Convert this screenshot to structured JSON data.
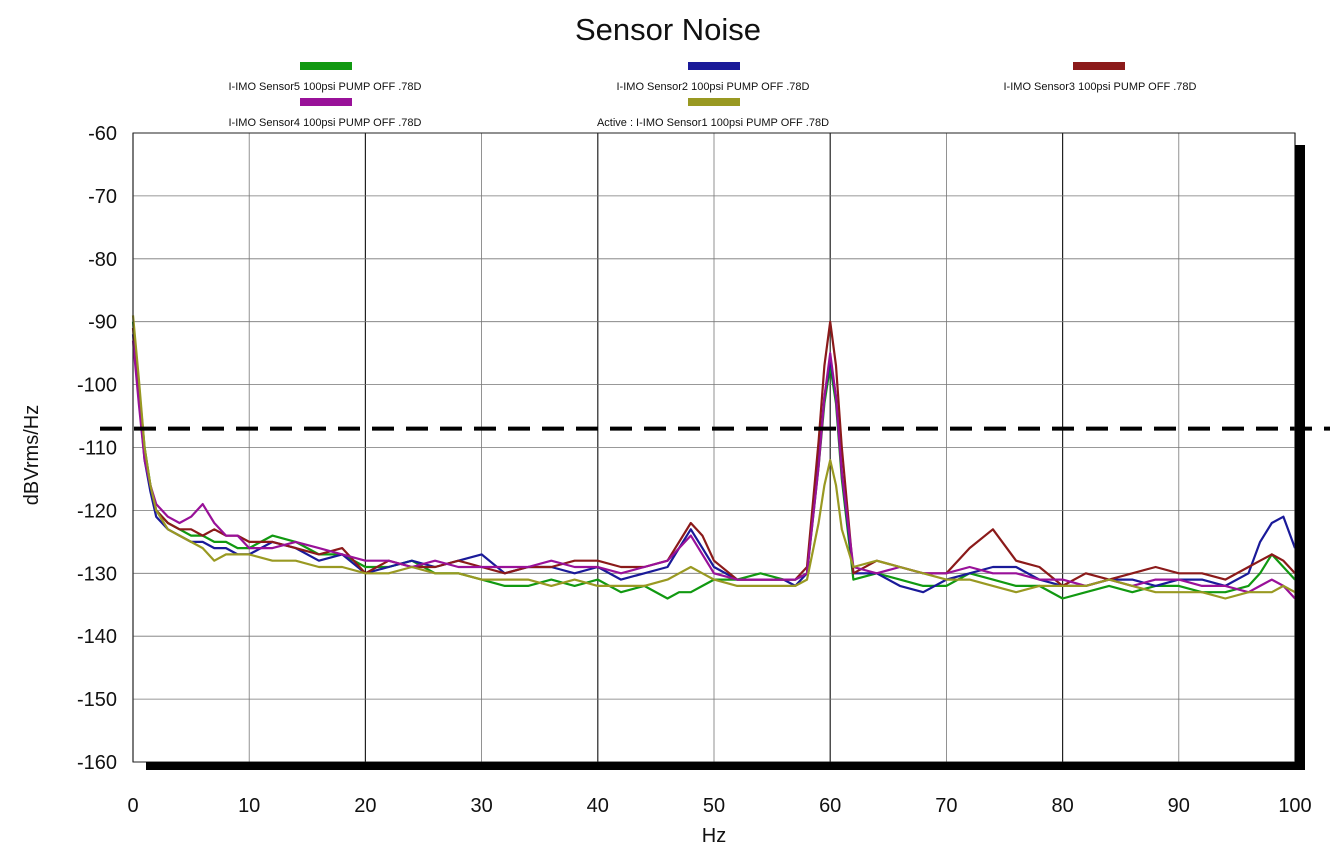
{
  "chart_data": {
    "type": "line",
    "title": "Sensor Noise",
    "xlabel": "Hz",
    "ylabel": "dBVrms/Hz",
    "xlim": [
      0,
      100
    ],
    "ylim": [
      -160,
      -60
    ],
    "x_ticks": [
      0,
      10,
      20,
      30,
      40,
      50,
      60,
      70,
      80,
      90,
      100
    ],
    "y_ticks": [
      -60,
      -70,
      -80,
      -90,
      -100,
      -110,
      -120,
      -130,
      -140,
      -150,
      -160
    ],
    "grid": true,
    "legend_position": "top",
    "threshold_line": {
      "y": -107,
      "style": "dashed",
      "color": "#000000"
    },
    "x": [
      0,
      0.5,
      1,
      1.5,
      2,
      3,
      4,
      5,
      6,
      7,
      8,
      9,
      10,
      12,
      14,
      16,
      18,
      20,
      22,
      24,
      26,
      28,
      30,
      32,
      34,
      36,
      38,
      40,
      42,
      44,
      46,
      47,
      48,
      49,
      50,
      52,
      54,
      56,
      57,
      58,
      59,
      59.5,
      60,
      60.5,
      61,
      62,
      64,
      66,
      68,
      70,
      72,
      74,
      76,
      78,
      80,
      82,
      84,
      86,
      88,
      90,
      92,
      94,
      96,
      97,
      98,
      99,
      100
    ],
    "series": [
      {
        "name": "I-IMO Sensor5  100psi PUMP OFF .78D",
        "color": "#119911",
        "values": [
          -90,
          -100,
          -110,
          -116,
          -120,
          -122,
          -123,
          -124,
          -124,
          -125,
          -125,
          -126,
          -126,
          -124,
          -125,
          -127,
          -127,
          -129,
          -129,
          -128,
          -130,
          -130,
          -131,
          -132,
          -132,
          -131,
          -132,
          -131,
          -133,
          -132,
          -134,
          -133,
          -133,
          -132,
          -131,
          -131,
          -130,
          -131,
          -131,
          -130,
          -113,
          -103,
          -97,
          -103,
          -115,
          -131,
          -130,
          -131,
          -132,
          -132,
          -130,
          -131,
          -132,
          -132,
          -134,
          -133,
          -132,
          -133,
          -132,
          -132,
          -133,
          -133,
          -132,
          -130,
          -127,
          -129,
          -131
        ]
      },
      {
        "name": "I-IMO Sensor2  100psi PUMP OFF .78D",
        "color": "#1a1a99",
        "values": [
          -92,
          -102,
          -112,
          -117,
          -121,
          -123,
          -124,
          -125,
          -125,
          -126,
          -126,
          -127,
          -127,
          -125,
          -126,
          -128,
          -127,
          -130,
          -129,
          -128,
          -129,
          -128,
          -127,
          -130,
          -129,
          -129,
          -130,
          -129,
          -131,
          -130,
          -129,
          -126,
          -123,
          -126,
          -129,
          -131,
          -131,
          -131,
          -132,
          -130,
          -112,
          -102,
          -96,
          -102,
          -114,
          -130,
          -130,
          -132,
          -133,
          -131,
          -130,
          -129,
          -129,
          -131,
          -132,
          -132,
          -131,
          -131,
          -132,
          -131,
          -131,
          -132,
          -130,
          -125,
          -122,
          -121,
          -126
        ]
      },
      {
        "name": "I-IMO Sensor3  100psi PUMP OFF .78D",
        "color": "#8b1a1a",
        "values": [
          -91,
          -101,
          -111,
          -116,
          -120,
          -122,
          -123,
          -123,
          -124,
          -123,
          -124,
          -124,
          -125,
          -125,
          -126,
          -127,
          -126,
          -130,
          -128,
          -129,
          -129,
          -128,
          -129,
          -130,
          -129,
          -129,
          -128,
          -128,
          -129,
          -129,
          -128,
          -125,
          -122,
          -124,
          -128,
          -131,
          -131,
          -131,
          -131,
          -129,
          -109,
          -97,
          -90,
          -97,
          -110,
          -130,
          -128,
          -129,
          -130,
          -130,
          -126,
          -123,
          -128,
          -129,
          -132,
          -130,
          -131,
          -130,
          -129,
          -130,
          -130,
          -131,
          -129,
          -128,
          -127,
          -128,
          -130
        ]
      },
      {
        "name": "I-IMO Sensor4  100psi PUMP OFF .78D",
        "color": "#991199",
        "values": [
          -93,
          -103,
          -112,
          -116,
          -119,
          -121,
          -122,
          -121,
          -119,
          -122,
          -124,
          -124,
          -126,
          -126,
          -125,
          -126,
          -127,
          -128,
          -128,
          -129,
          -128,
          -129,
          -129,
          -129,
          -129,
          -128,
          -129,
          -129,
          -130,
          -129,
          -128,
          -126,
          -124,
          -127,
          -130,
          -131,
          -131,
          -131,
          -131,
          -130,
          -113,
          -102,
          -95,
          -102,
          -114,
          -129,
          -130,
          -129,
          -130,
          -130,
          -129,
          -130,
          -130,
          -131,
          -131,
          -132,
          -131,
          -132,
          -131,
          -131,
          -132,
          -132,
          -133,
          -132,
          -131,
          -132,
          -134
        ]
      },
      {
        "name": "Active : I-IMO Sensor1  100psi PUMP OFF .78D",
        "color": "#999922",
        "values": [
          -89,
          -99,
          -110,
          -116,
          -120,
          -123,
          -124,
          -125,
          -126,
          -128,
          -127,
          -127,
          -127,
          -128,
          -128,
          -129,
          -129,
          -130,
          -130,
          -129,
          -130,
          -130,
          -131,
          -131,
          -131,
          -132,
          -131,
          -132,
          -132,
          -132,
          -131,
          -130,
          -129,
          -130,
          -131,
          -132,
          -132,
          -132,
          -132,
          -131,
          -122,
          -116,
          -112,
          -116,
          -123,
          -129,
          -128,
          -129,
          -130,
          -131,
          -131,
          -132,
          -133,
          -132,
          -132,
          -132,
          -131,
          -132,
          -133,
          -133,
          -133,
          -134,
          -133,
          -133,
          -133,
          -132,
          -133
        ]
      }
    ]
  }
}
